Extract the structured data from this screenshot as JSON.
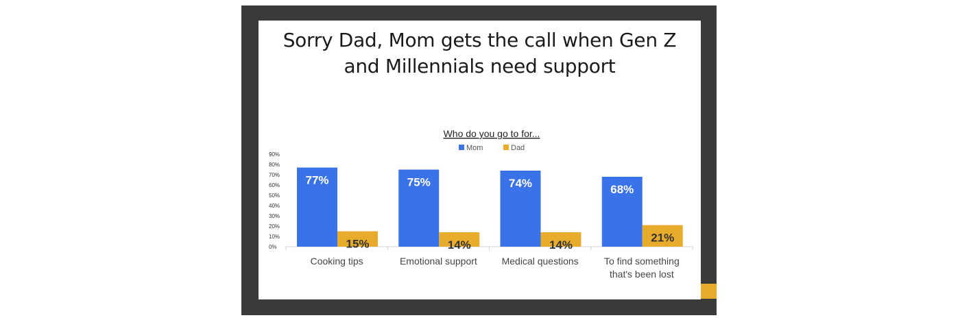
{
  "slide": {
    "title_line1": "Sorry Dad, Mom gets the call when Gen Z",
    "title_line2": "and Millennials need support"
  },
  "colors": {
    "frame": "#3a3a3a",
    "accent": "#e8ac2c",
    "mom": "#3a73e8",
    "dad": "#e8ac2c"
  },
  "chart_data": {
    "type": "bar",
    "title": "Who do you go to for...",
    "categories": [
      "Cooking tips",
      "Emotional support",
      "Medical questions",
      "To find something that's been lost"
    ],
    "category_lines": [
      [
        "Cooking tips"
      ],
      [
        "Emotional support"
      ],
      [
        "Medical questions"
      ],
      [
        "To find something",
        "that's been lost"
      ]
    ],
    "series": [
      {
        "name": "Mom",
        "values": [
          77,
          75,
          74,
          68
        ],
        "labels": [
          "77%",
          "75%",
          "74%",
          "68%"
        ]
      },
      {
        "name": "Dad",
        "values": [
          15,
          14,
          14,
          21
        ],
        "labels": [
          "15%",
          "14%",
          "14%",
          "21%"
        ]
      }
    ],
    "ylim": [
      0,
      90
    ],
    "yticks": [
      0,
      10,
      20,
      30,
      40,
      50,
      60,
      70,
      80,
      90
    ],
    "ytick_labels": [
      "0%",
      "10%",
      "20%",
      "30%",
      "40%",
      "50%",
      "60%",
      "70%",
      "80%",
      "90%"
    ],
    "legend_position": "top",
    "grid": false,
    "xlabel": "",
    "ylabel": ""
  }
}
